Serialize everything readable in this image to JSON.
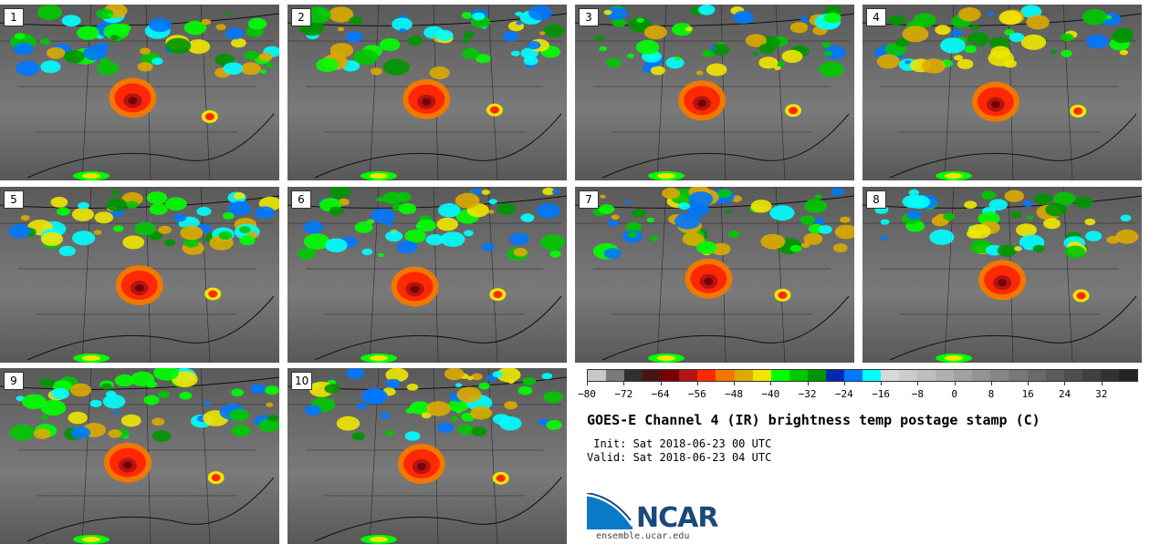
{
  "panels": [
    {
      "number": "1"
    },
    {
      "number": "2"
    },
    {
      "number": "3"
    },
    {
      "number": "4"
    },
    {
      "number": "5"
    },
    {
      "number": "6"
    },
    {
      "number": "7"
    },
    {
      "number": "8"
    },
    {
      "number": "9"
    },
    {
      "number": "10"
    }
  ],
  "colorbar": {
    "colors": [
      "#c8c8c8",
      "#7a7a7a",
      "#303030",
      "#4a1414",
      "#780000",
      "#b41414",
      "#ff2800",
      "#f07800",
      "#dcaa00",
      "#f0e600",
      "#00ff00",
      "#00c800",
      "#009600",
      "#0028b4",
      "#0078ff",
      "#00ffff",
      "#d8d8d8",
      "#cccccc",
      "#bebebe",
      "#b0b0b0",
      "#a2a2a2",
      "#949494",
      "#868686",
      "#787878",
      "#6a6a6a",
      "#5c5c5c",
      "#4e4e4e",
      "#404040",
      "#323232",
      "#242424"
    ],
    "ticks": [
      "−80",
      "−72",
      "−64",
      "−56",
      "−48",
      "−40",
      "−32",
      "−24",
      "−16",
      "−8",
      "0",
      "8",
      "16",
      "24",
      "32"
    ]
  },
  "title": "GOES-E Channel 4 (IR) brightness temp postage stamp (C)",
  "init": " Init: Sat 2018-06-23 00 UTC",
  "valid": "Valid: Sat 2018-06-23 04 UTC",
  "logo": {
    "name": "NCAR",
    "url": "ensemble.ucar.edu",
    "brand_color": "#1a4a7a"
  }
}
